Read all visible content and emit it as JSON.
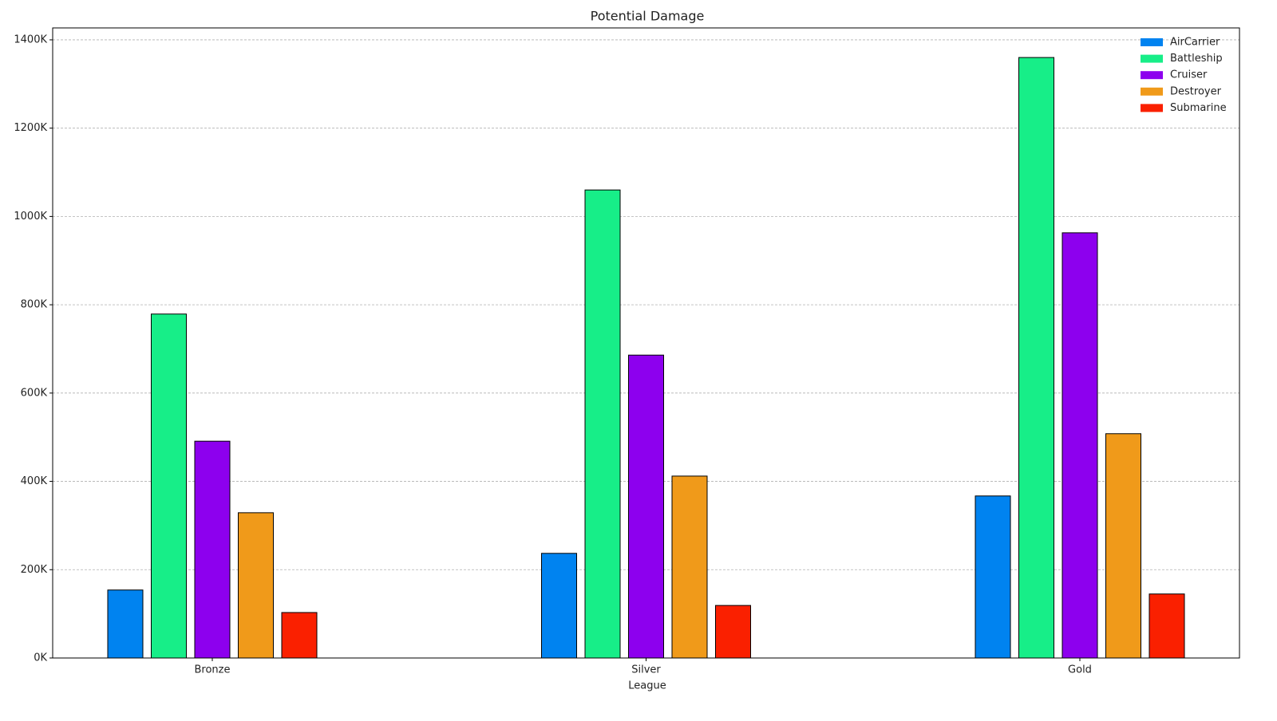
{
  "chart_data": {
    "type": "bar",
    "title": "Potential Damage",
    "x_label": "League",
    "categories": [
      "Bronze",
      "Silver",
      "Gold"
    ],
    "series": [
      {
        "name": "AirCarrier",
        "color": "#0083f0",
        "values": [
          154000,
          237000,
          367000
        ]
      },
      {
        "name": "Battleship",
        "color": "#17ee88",
        "values": [
          779000,
          1060000,
          1360000
        ]
      },
      {
        "name": "Cruiser",
        "color": "#8d00ee",
        "values": [
          491000,
          686000,
          963000
        ]
      },
      {
        "name": "Destroyer",
        "color": "#f09a1a",
        "values": [
          329000,
          412000,
          508000
        ]
      },
      {
        "name": "Submarine",
        "color": "#fa2000",
        "values": [
          103000,
          119000,
          145000
        ]
      }
    ],
    "ylim": [
      0,
      1427000
    ],
    "yticks": [
      {
        "value": 0,
        "label": "0K"
      },
      {
        "value": 200000,
        "label": "200K"
      },
      {
        "value": 400000,
        "label": "400K"
      },
      {
        "value": 600000,
        "label": "600K"
      },
      {
        "value": 800000,
        "label": "800K"
      },
      {
        "value": 1000000,
        "label": "1000K"
      },
      {
        "value": 1200000,
        "label": "1200K"
      },
      {
        "value": 1400000,
        "label": "1400K"
      }
    ],
    "grid": true,
    "legend": "upper right"
  }
}
